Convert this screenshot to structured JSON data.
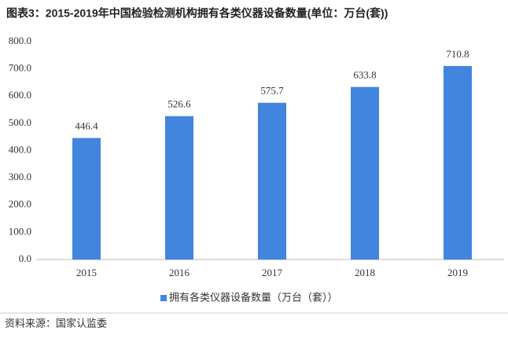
{
  "chart_data": {
    "type": "bar",
    "title": "图表3：2015-2019年中国检验检测机构拥有各类仪器设备数量(单位：万台(套))",
    "categories": [
      "2015",
      "2016",
      "2017",
      "2018",
      "2019"
    ],
    "series": [
      {
        "name": "拥有各类仪器设备数量（万台（套））",
        "color": "#4185df",
        "values": [
          446.4,
          526.6,
          575.7,
          633.8,
          710.8
        ]
      }
    ],
    "ylim": [
      0,
      800
    ],
    "yticks": [
      {
        "value": 0,
        "label": "0.0"
      },
      {
        "value": 100,
        "label": "100.0"
      },
      {
        "value": 200,
        "label": "200.0"
      },
      {
        "value": 300,
        "label": "300.0"
      },
      {
        "value": 400,
        "label": "400.0"
      },
      {
        "value": 500,
        "label": "500.0"
      },
      {
        "value": 600,
        "label": "600.0"
      },
      {
        "value": 700,
        "label": "700.0"
      },
      {
        "value": 800,
        "label": "800.0"
      }
    ],
    "grid": false,
    "legend": "bottom",
    "source": "资料来源：国家认监委"
  }
}
